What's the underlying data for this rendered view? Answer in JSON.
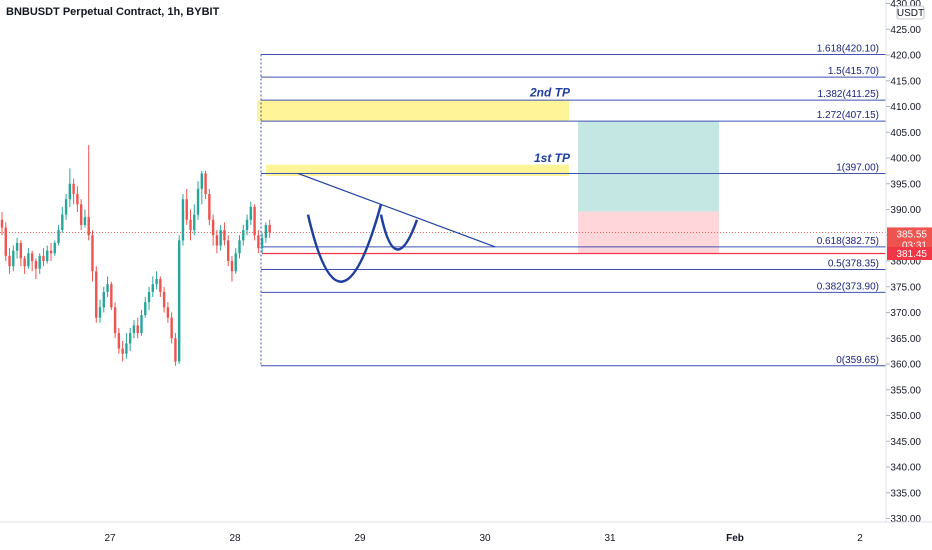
{
  "header": {
    "title": "BNBUSDT Perpetual Contract, 1h, BYBIT"
  },
  "axis": {
    "currency": "USDT",
    "y_ticks": [
      430,
      425,
      420,
      415,
      410,
      405,
      400,
      395,
      390,
      385,
      380,
      375,
      370,
      365,
      360,
      355,
      350,
      345,
      340,
      335,
      330
    ],
    "x_ticks": [
      "27",
      "28",
      "29",
      "30",
      "31",
      "Feb",
      "2"
    ]
  },
  "price_badges": {
    "last_price": "385.55",
    "countdown": "03:31",
    "level": "381.45"
  },
  "fib_levels": [
    {
      "label": "1.618(420.10)",
      "price": 420.1
    },
    {
      "label": "1.5(415.70)",
      "price": 415.7
    },
    {
      "label": "1.382(411.25)",
      "price": 411.25
    },
    {
      "label": "1.272(407.15)",
      "price": 407.15
    },
    {
      "label": "1(397.00)",
      "price": 397.0
    },
    {
      "label": "0.618(382.75)",
      "price": 382.75
    },
    {
      "label": "0.5(378.35)",
      "price": 378.35
    },
    {
      "label": "0.382(373.90)",
      "price": 373.9
    },
    {
      "label": "0(359.65)",
      "price": 359.65
    }
  ],
  "annotations": {
    "tp1": "1st TP",
    "tp2": "2nd TP"
  },
  "colors": {
    "up": "#26a69a",
    "down": "#ef5350",
    "fib": "#3f51b5",
    "pattern": "#1e3fa0",
    "zone": "#fff176",
    "profit": "#b2dfdb",
    "loss": "#ffcdd2",
    "level": "#f23645"
  },
  "chart_data": {
    "type": "candlestick",
    "y_range": [
      327,
      431
    ],
    "x_start_date": "27",
    "candles": [
      [
        388.0,
        386.5,
        389.5,
        385.0
      ],
      [
        386.5,
        381.0,
        387.5,
        380.0
      ],
      [
        381.0,
        379.0,
        382.5,
        377.5
      ],
      [
        379.0,
        382.0,
        383.0,
        378.0
      ],
      [
        382.0,
        383.5,
        384.5,
        380.5
      ],
      [
        383.5,
        380.5,
        384.0,
        379.0
      ],
      [
        380.5,
        379.0,
        381.0,
        377.5
      ],
      [
        379.0,
        381.5,
        382.5,
        378.5
      ],
      [
        381.5,
        380.0,
        382.0,
        378.0
      ],
      [
        380.0,
        378.5,
        380.5,
        376.5
      ],
      [
        378.5,
        381.0,
        381.5,
        377.5
      ],
      [
        381.0,
        380.0,
        382.5,
        379.0
      ],
      [
        380.0,
        382.0,
        383.0,
        379.5
      ],
      [
        382.0,
        381.5,
        383.5,
        380.0
      ],
      [
        381.5,
        383.5,
        384.0,
        381.0
      ],
      [
        383.5,
        386.0,
        387.0,
        383.0
      ],
      [
        386.0,
        389.0,
        390.5,
        385.5
      ],
      [
        389.0,
        392.0,
        393.0,
        388.0
      ],
      [
        392.0,
        395.0,
        398.0,
        390.5
      ],
      [
        395.0,
        393.0,
        396.0,
        391.0
      ],
      [
        393.0,
        391.0,
        394.5,
        389.5
      ],
      [
        391.0,
        387.0,
        392.0,
        386.0
      ],
      [
        387.0,
        388.5,
        390.0,
        386.5
      ],
      [
        388.5,
        385.0,
        402.5,
        384.0
      ],
      [
        385.0,
        378.0,
        386.0,
        376.0
      ],
      [
        378.0,
        369.0,
        379.0,
        368.0
      ],
      [
        369.0,
        371.0,
        372.5,
        368.0
      ],
      [
        371.0,
        374.0,
        375.0,
        370.0
      ],
      [
        374.0,
        375.5,
        377.0,
        373.0
      ],
      [
        375.5,
        371.0,
        376.0,
        370.5
      ],
      [
        371.0,
        366.0,
        372.0,
        365.0
      ],
      [
        366.0,
        363.0,
        367.0,
        362.0
      ],
      [
        363.0,
        362.0,
        364.5,
        360.5
      ],
      [
        362.0,
        364.0,
        366.0,
        361.0
      ],
      [
        364.0,
        366.0,
        367.0,
        362.5
      ],
      [
        366.0,
        367.5,
        368.5,
        365.0
      ],
      [
        367.5,
        366.0,
        369.0,
        365.0
      ],
      [
        366.0,
        369.5,
        370.5,
        365.5
      ],
      [
        369.5,
        372.0,
        373.0,
        369.0
      ],
      [
        372.0,
        374.0,
        375.0,
        370.5
      ],
      [
        374.0,
        375.5,
        377.0,
        373.0
      ],
      [
        375.5,
        376.5,
        378.0,
        374.5
      ],
      [
        376.5,
        374.0,
        377.0,
        373.0
      ],
      [
        374.0,
        371.0,
        375.0,
        370.0
      ],
      [
        371.0,
        369.0,
        372.0,
        368.0
      ],
      [
        369.0,
        365.0,
        370.0,
        364.0
      ],
      [
        365.0,
        360.5,
        366.0,
        359.65
      ],
      [
        360.5,
        384.0,
        385.0,
        360.0
      ],
      [
        384.0,
        392.0,
        393.0,
        383.0
      ],
      [
        392.0,
        388.0,
        394.0,
        387.0
      ],
      [
        388.0,
        386.0,
        390.0,
        384.0
      ],
      [
        386.0,
        389.0,
        391.0,
        385.0
      ],
      [
        389.0,
        394.0,
        395.5,
        388.0
      ],
      [
        394.0,
        397.0,
        397.5,
        391.0
      ],
      [
        397.0,
        393.0,
        397.5,
        392.0
      ],
      [
        393.0,
        388.0,
        394.0,
        387.0
      ],
      [
        388.0,
        385.0,
        389.0,
        383.0
      ],
      [
        385.0,
        383.0,
        386.0,
        381.5
      ],
      [
        383.0,
        386.0,
        387.0,
        382.0
      ],
      [
        386.0,
        384.0,
        387.5,
        383.0
      ],
      [
        384.0,
        380.0,
        385.0,
        379.0
      ],
      [
        380.0,
        378.0,
        381.0,
        376.0
      ],
      [
        378.0,
        381.5,
        382.5,
        377.5
      ],
      [
        381.5,
        384.0,
        385.0,
        380.5
      ],
      [
        384.0,
        386.0,
        387.0,
        383.0
      ],
      [
        386.0,
        388.0,
        389.0,
        385.0
      ],
      [
        388.0,
        390.5,
        391.5,
        387.0
      ],
      [
        390.5,
        385.0,
        391.0,
        384.0
      ],
      [
        385.0,
        382.5,
        386.0,
        381.5
      ],
      [
        382.5,
        384.5,
        385.5,
        381.5
      ],
      [
        384.5,
        387.0,
        387.5,
        383.5
      ],
      [
        387.0,
        385.55,
        388.0,
        384.5
      ]
    ]
  }
}
